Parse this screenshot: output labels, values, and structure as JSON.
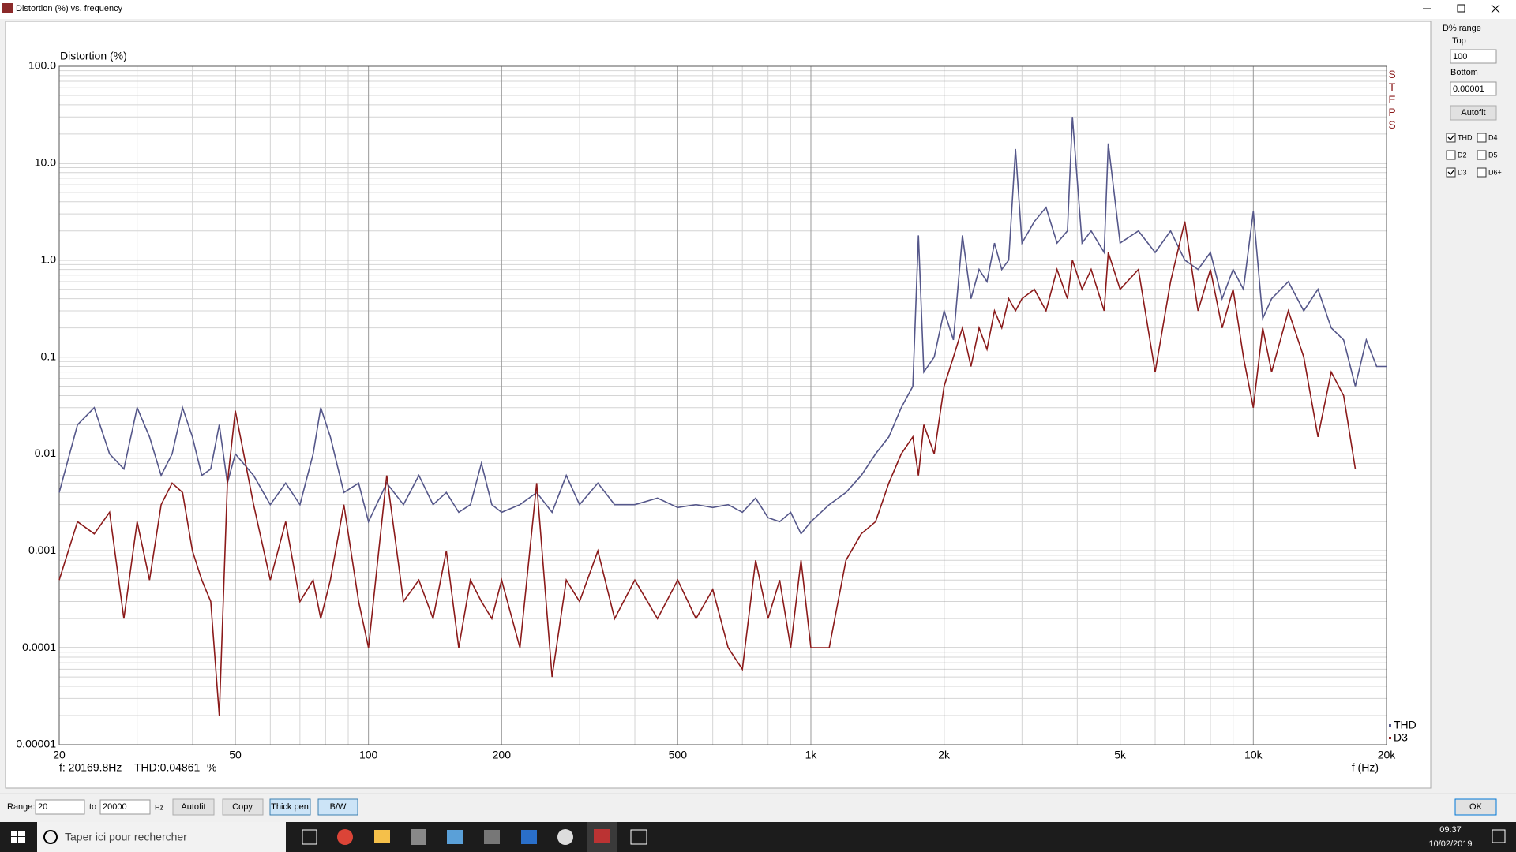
{
  "window_title": "Distortion (%) vs. frequency",
  "chart_data": {
    "type": "line",
    "ylabel": "Distortion (%)",
    "xlabel": "f (Hz)",
    "watermark": "STEPS",
    "log_x": true,
    "log_y": true,
    "grid": true,
    "xlim": [
      20,
      20000
    ],
    "ylim": [
      1e-05,
      100
    ],
    "xticks": [
      20,
      50,
      100,
      200,
      500,
      {
        "value": 1000,
        "label": "1k"
      },
      {
        "value": 2000,
        "label": "2k"
      },
      {
        "value": 5000,
        "label": "5k"
      },
      {
        "value": 10000,
        "label": "10k"
      },
      {
        "value": 20000,
        "label": "20k"
      }
    ],
    "yticks": [
      {
        "value": 100,
        "label": "100.0"
      },
      {
        "value": 10,
        "label": "10.0"
      },
      {
        "value": 1,
        "label": "1.0"
      },
      0.1,
      0.01,
      0.001,
      0.0001,
      1e-05
    ],
    "x_minor_ticks": [
      30,
      40,
      60,
      70,
      80,
      90,
      300,
      400,
      600,
      700,
      800,
      900,
      3000,
      4000,
      6000,
      7000,
      8000,
      9000
    ],
    "y_minor_ticks": [
      2e-05,
      3e-05,
      4e-05,
      5e-05,
      6e-05,
      7e-05,
      8e-05,
      9e-05,
      0.0002,
      0.0003,
      0.0004,
      0.0005,
      0.0006,
      0.0007,
      0.0008,
      0.0009,
      0.002,
      0.003,
      0.004,
      0.005,
      0.006,
      0.007,
      0.008,
      0.009,
      0.02,
      0.03,
      0.04,
      0.05,
      0.06,
      0.07,
      0.08,
      0.09,
      0.2,
      0.3,
      0.4,
      0.5,
      0.6,
      0.7,
      0.8,
      0.9,
      2,
      3,
      4,
      5,
      6,
      7,
      8,
      9,
      20,
      30,
      40,
      50,
      60,
      70,
      80,
      90
    ],
    "x": [
      20,
      22,
      24,
      26,
      28,
      30,
      32,
      34,
      36,
      38,
      40,
      42,
      44,
      46,
      48,
      50,
      55,
      60,
      65,
      70,
      75,
      78,
      82,
      88,
      95,
      100,
      110,
      120,
      130,
      140,
      150,
      160,
      170,
      180,
      190,
      200,
      220,
      240,
      260,
      280,
      300,
      330,
      360,
      400,
      450,
      500,
      550,
      600,
      650,
      700,
      750,
      800,
      850,
      900,
      950,
      1000,
      1100,
      1200,
      1300,
      1400,
      1500,
      1600,
      1700,
      1750,
      1800,
      1900,
      2000,
      2100,
      2200,
      2300,
      2400,
      2500,
      2600,
      2700,
      2800,
      2900,
      3000,
      3200,
      3400,
      3600,
      3800,
      3900,
      4100,
      4300,
      4600,
      4700,
      5000,
      5500,
      6000,
      6500,
      7000,
      7500,
      8000,
      8500,
      9000,
      9500,
      10000,
      10500,
      11000,
      12000,
      13000,
      14000,
      15000,
      16000,
      17000,
      18000,
      19000,
      20000
    ],
    "series": [
      {
        "name": "THD",
        "color": "#55578a",
        "values": [
          0.004,
          0.02,
          0.03,
          0.01,
          0.007,
          0.03,
          0.015,
          0.006,
          0.01,
          0.03,
          0.015,
          0.006,
          0.007,
          0.02,
          0.005,
          0.01,
          0.006,
          0.003,
          0.005,
          0.003,
          0.01,
          0.03,
          0.015,
          0.004,
          0.005,
          0.002,
          0.005,
          0.003,
          0.006,
          0.003,
          0.004,
          0.0025,
          0.003,
          0.008,
          0.003,
          0.0025,
          0.003,
          0.004,
          0.0025,
          0.006,
          0.003,
          0.005,
          0.003,
          0.003,
          0.0035,
          0.0028,
          0.003,
          0.0028,
          0.003,
          0.0025,
          0.0035,
          0.0022,
          0.002,
          0.0025,
          0.0015,
          0.002,
          0.003,
          0.004,
          0.006,
          0.01,
          0.015,
          0.03,
          0.05,
          1.8,
          0.07,
          0.1,
          0.3,
          0.15,
          1.8,
          0.4,
          0.8,
          0.6,
          1.5,
          0.8,
          1.0,
          14,
          1.5,
          2.5,
          3.5,
          1.5,
          2.0,
          30,
          1.5,
          2.0,
          1.2,
          16,
          1.5,
          2.0,
          1.2,
          2.0,
          1.0,
          0.8,
          1.2,
          0.4,
          0.8,
          0.5,
          3.2,
          0.25,
          0.4,
          0.6,
          0.3,
          0.5,
          0.2,
          0.15,
          0.05,
          0.15,
          0.08,
          0.08
        ]
      },
      {
        "name": "D3",
        "color": "#8b1a1a",
        "values": [
          0.0005,
          0.002,
          0.0015,
          0.0025,
          0.0002,
          0.002,
          0.0005,
          0.003,
          0.005,
          0.004,
          0.001,
          0.0005,
          0.0003,
          2e-05,
          0.005,
          0.028,
          0.003,
          0.0005,
          0.002,
          0.0003,
          0.0005,
          0.0002,
          0.0005,
          0.003,
          0.0003,
          0.0001,
          0.006,
          0.0003,
          0.0005,
          0.0002,
          0.001,
          0.0001,
          0.0005,
          0.0003,
          0.0002,
          0.0005,
          0.0001,
          0.005,
          5e-05,
          0.0005,
          0.0003,
          0.001,
          0.0002,
          0.0005,
          0.0002,
          0.0005,
          0.0002,
          0.0004,
          0.0001,
          6e-05,
          0.0008,
          0.0002,
          0.0005,
          0.0001,
          0.0008,
          0.0001,
          0.0001,
          0.0008,
          0.0015,
          0.002,
          0.005,
          0.01,
          0.015,
          0.006,
          0.02,
          0.01,
          0.05,
          0.1,
          0.2,
          0.08,
          0.2,
          0.12,
          0.3,
          0.2,
          0.4,
          0.3,
          0.4,
          0.5,
          0.3,
          0.8,
          0.4,
          1.0,
          0.5,
          0.8,
          0.3,
          1.2,
          0.5,
          0.8,
          0.07,
          0.6,
          2.5,
          0.3,
          0.8,
          0.2,
          0.5,
          0.1,
          0.03,
          0.2,
          0.07,
          0.3,
          0.1,
          0.015,
          0.07,
          0.04,
          0.007,
          null,
          null,
          null
        ]
      }
    ]
  },
  "status": {
    "freq": "f: 20169.8Hz",
    "thd": "THD:0.04861",
    "unit": "%"
  },
  "panel": {
    "title": "D% range",
    "top_label": "Top",
    "top_value": "100",
    "bottom_label": "Bottom",
    "bottom_value": "0.00001",
    "autofit": "Autofit",
    "checkboxes": [
      {
        "label": "THD",
        "checked": true
      },
      {
        "label": "D4",
        "checked": false
      },
      {
        "label": "D2",
        "checked": false
      },
      {
        "label": "D5",
        "checked": false
      },
      {
        "label": "D3",
        "checked": true
      },
      {
        "label": "D6+",
        "checked": false
      }
    ]
  },
  "toolbar": {
    "range_label": "Range:",
    "from": "20",
    "to_label": "to",
    "to": "20000",
    "unit": "Hz",
    "autofit": "Autofit",
    "copy": "Copy",
    "thick_pen": "Thick pen",
    "bw": "B/W",
    "ok": "OK"
  },
  "taskbar": {
    "search": "Taper ici pour rechercher",
    "time": "09:37",
    "date": "10/02/2019"
  }
}
